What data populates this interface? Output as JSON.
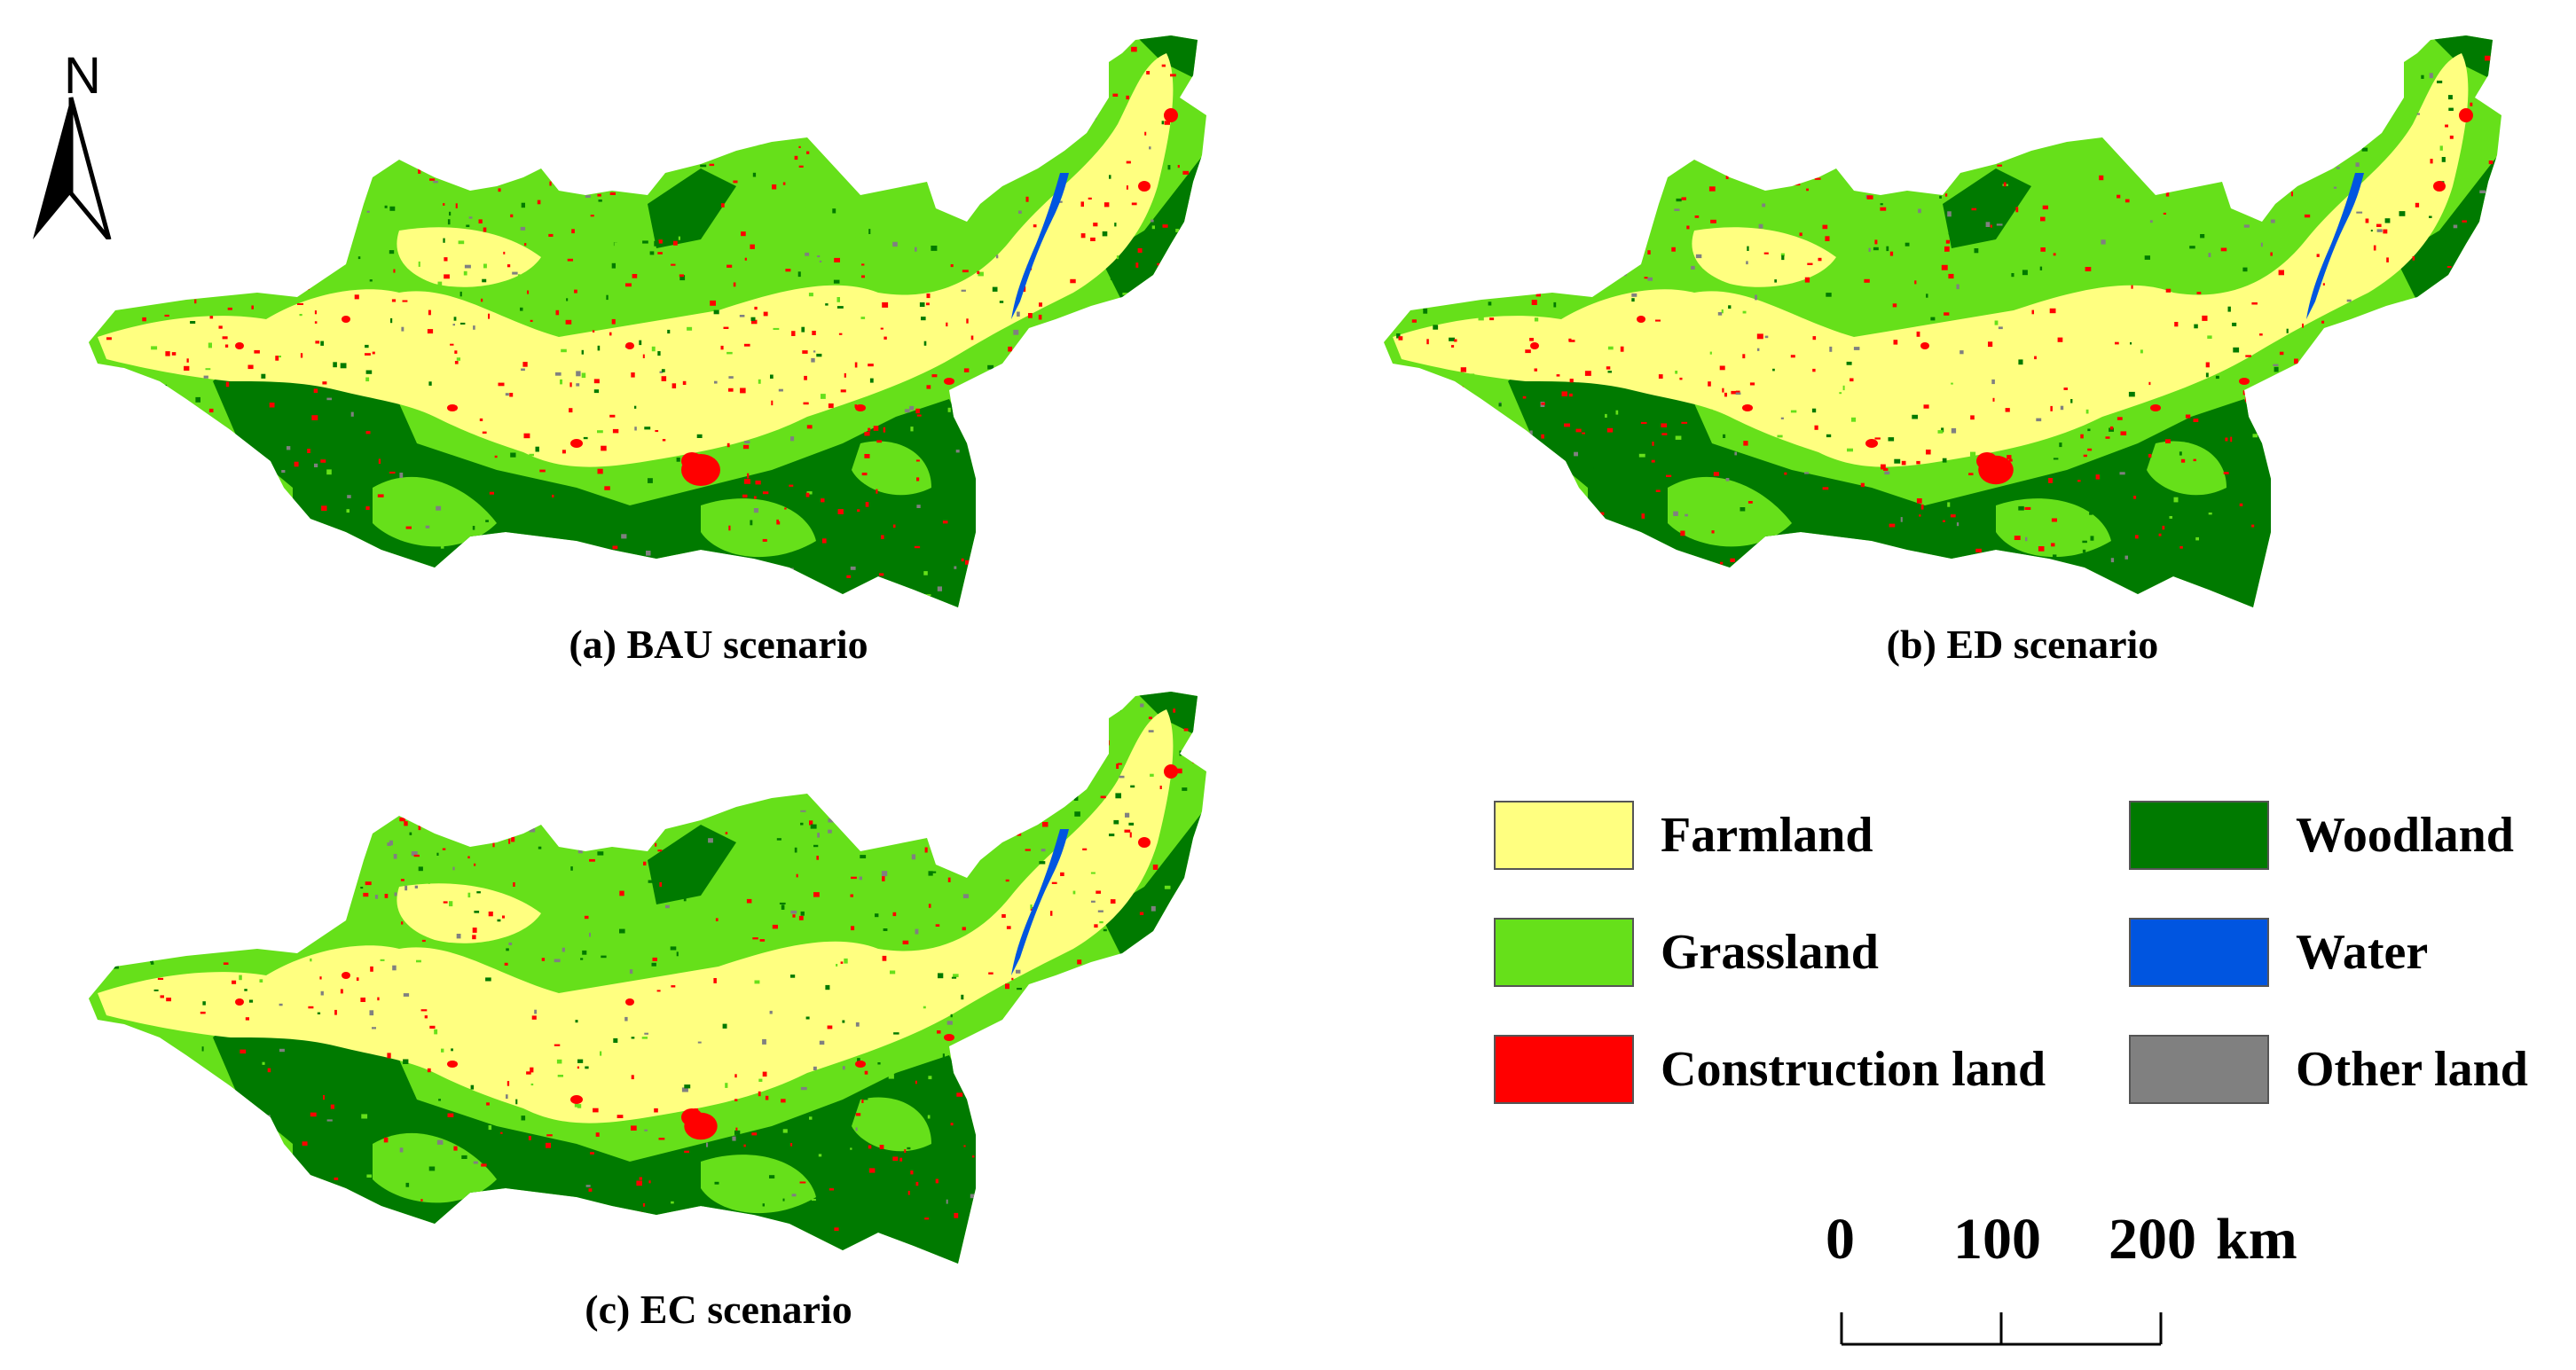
{
  "north_arrow": {
    "letter": "N"
  },
  "panels": [
    {
      "id": "a",
      "caption": "(a) BAU scenario"
    },
    {
      "id": "b",
      "caption": "(b) ED scenario"
    },
    {
      "id": "c",
      "caption": "(c) EC scenario"
    }
  ],
  "legend": {
    "items": [
      {
        "label": "Farmland",
        "color": "#ffff80"
      },
      {
        "label": "Woodland",
        "color": "#007a00"
      },
      {
        "label": "Grassland",
        "color": "#66e01a"
      },
      {
        "label": "Water",
        "color": "#0055e0"
      },
      {
        "label": "Construction land",
        "color": "#ff0000"
      },
      {
        "label": "Other land",
        "color": "#808080"
      }
    ]
  },
  "scale_bar": {
    "labels": [
      "0",
      "100",
      "200"
    ],
    "unit": "km"
  }
}
